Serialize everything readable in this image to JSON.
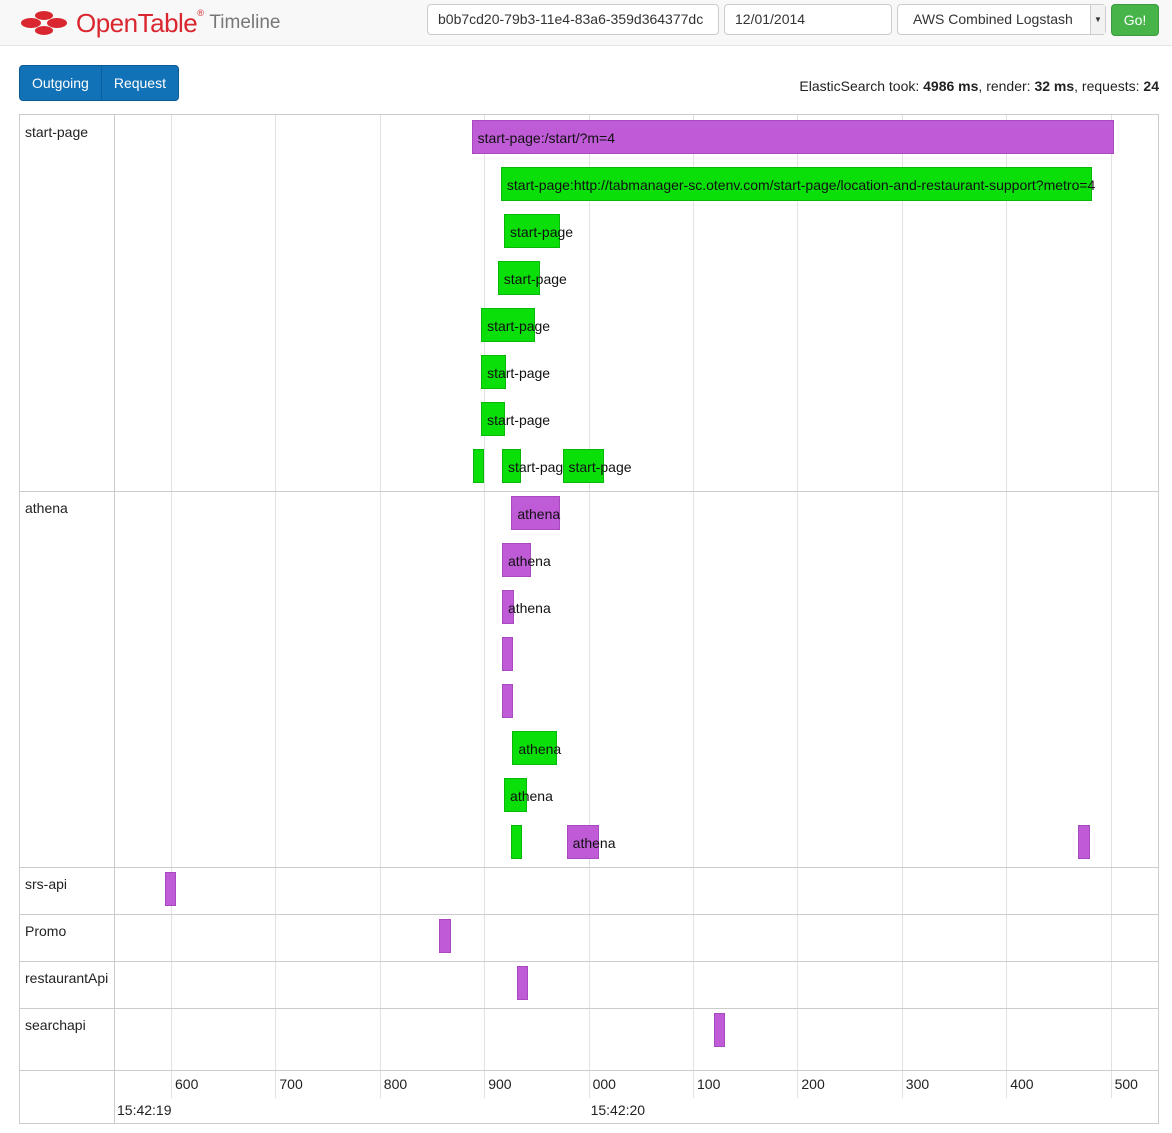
{
  "navbar": {
    "brand": "OpenTable",
    "brand_mark": "®",
    "suffix": "Timeline",
    "request_id": "b0b7cd20-79b3-11e4-83a6-359d364377dc",
    "date": "12/01/2014",
    "source": "AWS Combined Logstash",
    "go_label": "Go!"
  },
  "toggle": {
    "outgoing": "Outgoing",
    "request": "Request"
  },
  "stats": {
    "prefix": "ElasticSearch took: ",
    "took": "4986 ms",
    "render_label": ", render: ",
    "render": "32 ms",
    "requests_label": ", requests: ",
    "requests": "24"
  },
  "colors": {
    "outgoing": "#bf5bd6",
    "request": "#0adf0a",
    "go": "#47b44a",
    "toggle": "#1272b8",
    "brand": "#d9262f"
  },
  "timeline": {
    "rows": [
      {
        "name": "start-page"
      },
      {
        "name": "athena"
      },
      {
        "name": "srs-api"
      },
      {
        "name": "Promo"
      },
      {
        "name": "restaurantApi"
      },
      {
        "name": "searchapi"
      }
    ],
    "ticks": [
      "600",
      "700",
      "800",
      "900",
      "000",
      "100",
      "200",
      "300",
      "400",
      "500"
    ],
    "time_labels": [
      "15:42:19",
      "15:42:20"
    ],
    "bars": [
      {
        "row": 0,
        "lane": 0,
        "start": 888,
        "end": 1503,
        "kind": "outgoing",
        "label": "start-page:/start/?m=4"
      },
      {
        "row": 0,
        "lane": 1,
        "start": 916,
        "end": 1482,
        "kind": "request",
        "label": "start-page:http://tabmanager-sc.otenv.com/start-page/location-and-restaurant-support?metro=4"
      },
      {
        "row": 0,
        "lane": 2,
        "start": 919,
        "end": 973,
        "kind": "request",
        "label": "start-page"
      },
      {
        "row": 0,
        "lane": 3,
        "start": 913,
        "end": 953,
        "kind": "request",
        "label": "start-page"
      },
      {
        "row": 0,
        "lane": 4,
        "start": 897,
        "end": 949,
        "kind": "request",
        "label": "start-page"
      },
      {
        "row": 0,
        "lane": 5,
        "start": 897,
        "end": 921,
        "kind": "request",
        "label": "start-page"
      },
      {
        "row": 0,
        "lane": 6,
        "start": 897,
        "end": 920,
        "kind": "request",
        "label": "start-page"
      },
      {
        "row": 0,
        "lane": 7,
        "start": 889,
        "end": 900,
        "kind": "request",
        "label": ""
      },
      {
        "row": 0,
        "lane": 7,
        "start": 917,
        "end": 935,
        "kind": "request",
        "label": "start-page"
      },
      {
        "row": 0,
        "lane": 7,
        "start": 975,
        "end": 1015,
        "kind": "request",
        "label": "start-page"
      },
      {
        "row": 1,
        "lane": 0,
        "start": 926,
        "end": 973,
        "kind": "outgoing",
        "label": "athena"
      },
      {
        "row": 1,
        "lane": 1,
        "start": 917,
        "end": 945,
        "kind": "outgoing",
        "label": "athena"
      },
      {
        "row": 1,
        "lane": 2,
        "start": 917,
        "end": 929,
        "kind": "outgoing",
        "label": "athena"
      },
      {
        "row": 1,
        "lane": 3,
        "start": 917,
        "end": 928,
        "kind": "outgoing",
        "label": ""
      },
      {
        "row": 1,
        "lane": 4,
        "start": 917,
        "end": 928,
        "kind": "outgoing",
        "label": ""
      },
      {
        "row": 1,
        "lane": 5,
        "start": 927,
        "end": 970,
        "kind": "request",
        "label": "athena"
      },
      {
        "row": 1,
        "lane": 6,
        "start": 919,
        "end": 941,
        "kind": "request",
        "label": "athena"
      },
      {
        "row": 1,
        "lane": 7,
        "start": 926,
        "end": 936,
        "kind": "request",
        "label": ""
      },
      {
        "row": 1,
        "lane": 7,
        "start": 979,
        "end": 1010,
        "kind": "outgoing",
        "label": "athena"
      },
      {
        "row": 1,
        "lane": 7,
        "start": 1469,
        "end": 1480,
        "kind": "outgoing",
        "label": ""
      },
      {
        "row": 2,
        "lane": 0,
        "start": 594,
        "end": 605,
        "kind": "outgoing",
        "label": ""
      },
      {
        "row": 3,
        "lane": 0,
        "start": 857,
        "end": 868,
        "kind": "outgoing",
        "label": ""
      },
      {
        "row": 4,
        "lane": 0,
        "start": 931,
        "end": 942,
        "kind": "outgoing",
        "label": ""
      },
      {
        "row": 5,
        "lane": 0,
        "start": 1120,
        "end": 1131,
        "kind": "outgoing",
        "label": ""
      }
    ]
  }
}
